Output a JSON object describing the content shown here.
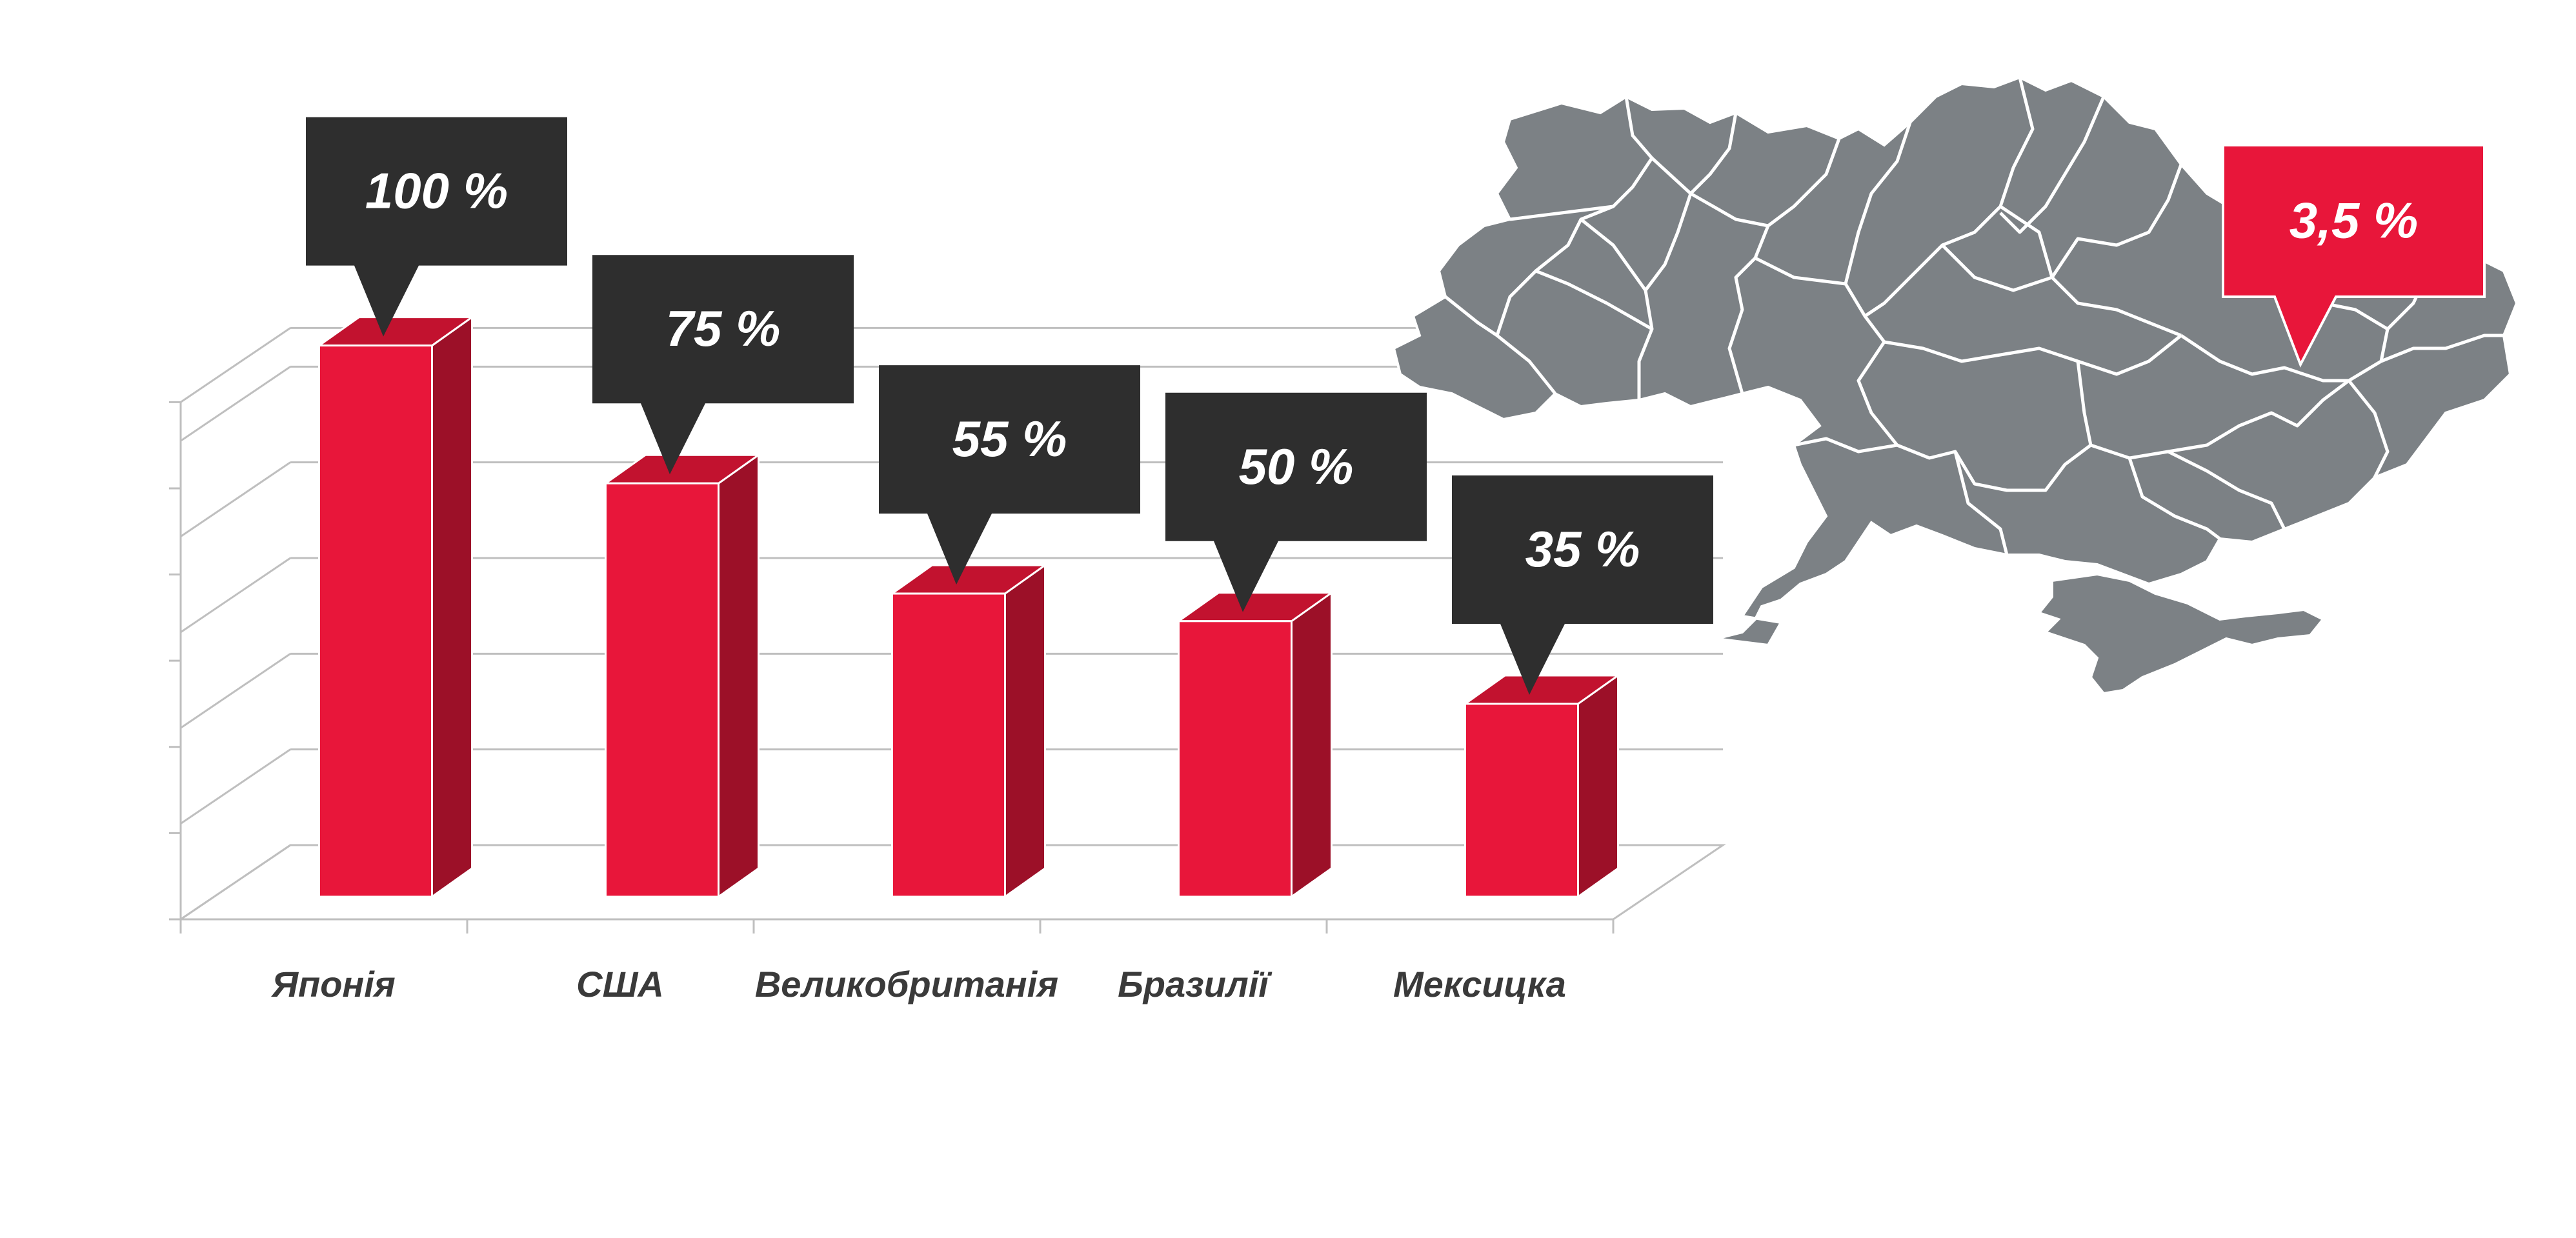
{
  "chart_data": {
    "type": "bar",
    "categories": [
      "Японія",
      "США",
      "Великобританія",
      "Бразилії",
      "Мексицка"
    ],
    "values": [
      100,
      75,
      55,
      50,
      35
    ],
    "data_labels": [
      "100 %",
      "75 %",
      "55 %",
      "50 %",
      "35 %"
    ],
    "title": "",
    "xlabel": "",
    "ylabel": "",
    "ylim": [
      0,
      100
    ],
    "grid": true,
    "style": "3d-column with callout labels"
  },
  "map_callout": {
    "label": "3,5 %",
    "region": "Україна"
  },
  "colors": {
    "bar_front": "#E8163A",
    "bar_side": "#9C1028",
    "bar_top": "#C2122F",
    "callout_dark": "#2E2E2E",
    "callout_accent": "#E8163A",
    "map_fill": "#7C8185",
    "map_border": "#FFFFFF",
    "axis_text": "#3A3A3A",
    "gridline": "#BFBFBF"
  }
}
